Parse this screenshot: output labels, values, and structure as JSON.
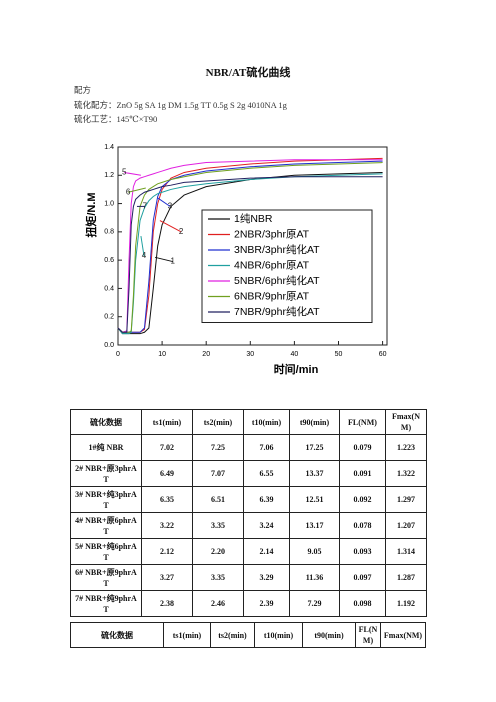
{
  "header": {
    "title": "NBR/AT硫化曲线",
    "lines": [
      "配方",
      "硫化配方：ZnO 5g SA 1g DM 1.5g TT 0.5g S 2g 4010NA 1g",
      "硫化工艺：145℃×T90"
    ]
  },
  "chart_data": {
    "type": "line",
    "xlabel": "时间/min",
    "ylabel": "扭矩/N.M",
    "x": [
      0,
      1,
      2,
      2.5,
      3,
      3.5,
      4,
      5,
      6,
      7,
      8,
      9,
      10,
      12,
      15,
      20,
      30,
      40,
      50,
      60
    ],
    "series": [
      {
        "name": "1纯NBR",
        "color": "#111111",
        "values": [
          0.12,
          0.08,
          0.08,
          0.08,
          0.08,
          0.08,
          0.08,
          0.08,
          0.09,
          0.12,
          0.4,
          0.7,
          0.85,
          0.98,
          1.06,
          1.12,
          1.17,
          1.2,
          1.21,
          1.22
        ]
      },
      {
        "name": "2NBR/3phr原AT",
        "color": "#e02020",
        "values": [
          0.12,
          0.09,
          0.09,
          0.09,
          0.09,
          0.09,
          0.09,
          0.09,
          0.11,
          0.35,
          0.8,
          1.0,
          1.1,
          1.18,
          1.22,
          1.25,
          1.28,
          1.3,
          1.31,
          1.32
        ]
      },
      {
        "name": "3NBR/3phr纯化AT",
        "color": "#2030d0",
        "values": [
          0.12,
          0.09,
          0.09,
          0.09,
          0.09,
          0.09,
          0.09,
          0.09,
          0.12,
          0.45,
          0.88,
          1.05,
          1.12,
          1.17,
          1.2,
          1.23,
          1.26,
          1.28,
          1.29,
          1.3
        ]
      },
      {
        "name": "4NBR/6phr原AT",
        "color": "#20a0a0",
        "values": [
          0.12,
          0.08,
          0.08,
          0.08,
          0.09,
          0.3,
          0.6,
          0.88,
          0.97,
          1.02,
          1.05,
          1.07,
          1.08,
          1.1,
          1.12,
          1.14,
          1.17,
          1.19,
          1.2,
          1.21
        ]
      },
      {
        "name": "5NBR/6phr纯化AT",
        "color": "#e020e0",
        "values": [
          0.12,
          0.09,
          0.1,
          0.6,
          1.0,
          1.12,
          1.16,
          1.18,
          1.19,
          1.2,
          1.21,
          1.22,
          1.23,
          1.25,
          1.27,
          1.29,
          1.3,
          1.31,
          1.31,
          1.31
        ]
      },
      {
        "name": "6NBR/9phr原AT",
        "color": "#70a020",
        "values": [
          0.12,
          0.09,
          0.09,
          0.09,
          0.1,
          0.35,
          0.7,
          0.98,
          1.06,
          1.1,
          1.12,
          1.14,
          1.15,
          1.17,
          1.19,
          1.22,
          1.25,
          1.27,
          1.28,
          1.29
        ]
      },
      {
        "name": "7NBR/9phr纯化AT",
        "color": "#202060",
        "values": [
          0.12,
          0.09,
          0.09,
          0.4,
          0.85,
          0.98,
          1.03,
          1.06,
          1.08,
          1.09,
          1.1,
          1.11,
          1.12,
          1.13,
          1.15,
          1.16,
          1.18,
          1.19,
          1.19,
          1.19
        ]
      }
    ],
    "annotations": [
      {
        "text": "1",
        "xy": [
          8.4,
          0.62
        ],
        "xytext": [
          12.4,
          0.59
        ]
      },
      {
        "text": "2",
        "xy": [
          9.5,
          0.88
        ],
        "xytext": [
          14.3,
          0.8
        ]
      },
      {
        "text": "3",
        "xy": [
          9,
          1.04
        ],
        "xytext": [
          11.8,
          0.98
        ]
      },
      {
        "text": "4",
        "xy": [
          5.2,
          0.77
        ],
        "xytext": [
          5.9,
          0.63
        ]
      },
      {
        "text": "5",
        "xy": [
          5.2,
          1.2
        ],
        "xytext": [
          1.4,
          1.22
        ]
      },
      {
        "text": "6",
        "xy": [
          6.3,
          1.11
        ],
        "xytext": [
          2.3,
          1.08
        ]
      },
      {
        "text": "7",
        "xy": [
          4.3,
          0.98
        ],
        "xytext": [
          6.1,
          0.98
        ]
      }
    ],
    "xlim": [
      0,
      61
    ],
    "ylim": [
      0,
      1.4
    ],
    "xticks": [
      0,
      10,
      20,
      30,
      40,
      50,
      60
    ],
    "yticks": [
      {
        "value": 0,
        "label": "0.0"
      },
      0.2,
      0.4,
      0.6,
      0.8,
      {
        "value": 1,
        "label": "1.0"
      },
      1.2,
      1.4
    ],
    "grid": false,
    "legend": "lower right"
  },
  "table": {
    "header": [
      "硫化数据",
      "ts1(min)",
      "ts2(min)",
      "t10(min)",
      "t90(min)",
      "FL(NM)",
      "Fmax(NM)"
    ],
    "rows": [
      [
        "1#纯 NBR",
        "7.02",
        "7.25",
        "7.06",
        "17.25",
        "0.079",
        "1.223"
      ],
      [
        "2# NBR+原3phrAT",
        "6.49",
        "7.07",
        "6.55",
        "13.37",
        "0.091",
        "1.322"
      ],
      [
        "3# NBR+纯3phrAT",
        "6.35",
        "6.51",
        "6.39",
        "12.51",
        "0.092",
        "1.297"
      ],
      [
        "4# NBR+原6phrAT",
        "3.22",
        "3.35",
        "3.24",
        "13.17",
        "0.078",
        "1.207"
      ],
      [
        "5# NBR+纯6phrAT",
        "2.12",
        "2.20",
        "2.14",
        "9.05",
        "0.093",
        "1.314"
      ],
      [
        "6# NBR+原9phrAT",
        "3.27",
        "3.35",
        "3.29",
        "11.36",
        "0.097",
        "1.287"
      ],
      [
        "7# NBR+纯9phrAT",
        "2.38",
        "2.46",
        "2.39",
        "7.29",
        "0.098",
        "1.192"
      ]
    ]
  },
  "table2": {
    "header": [
      "硫化数据",
      "ts1(min)",
      "ts2(min)",
      "t10(min)",
      "t90(min)",
      "FL(NM)",
      "Fmax(NM)"
    ]
  }
}
